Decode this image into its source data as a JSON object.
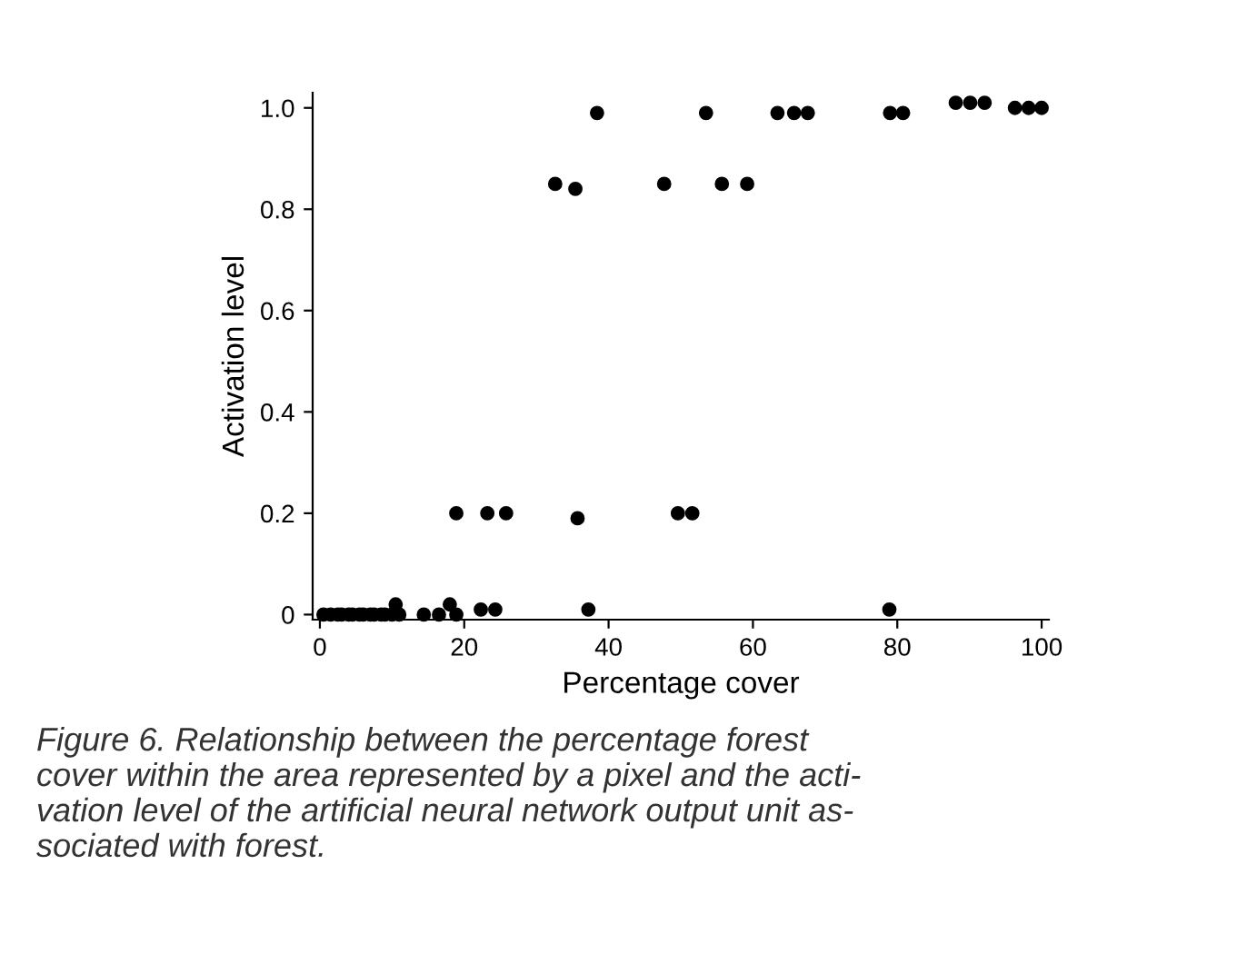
{
  "chart_data": {
    "type": "scatter",
    "xlabel": "Percentage cover",
    "ylabel": "Activation level",
    "annotations": [
      "Figure 6. Relationship between the percentage forest\ncover within the area represented by a pixel and the acti-\nvation level of the artificial neural network output unit as-\nsociated with forest."
    ],
    "x": [
      0.5,
      1.5,
      2.5,
      3,
      4,
      4.5,
      5.5,
      6,
      7,
      7.5,
      8.5,
      9,
      10,
      11,
      10.5,
      14.4,
      16.5,
      18.0,
      18.9,
      22.3,
      24.3,
      37.2,
      78.9,
      18.9,
      23.2,
      25.8,
      35.7,
      49.6,
      51.6,
      32.6,
      35.4,
      47.7,
      55.7,
      59.2,
      38.4,
      53.5,
      63.4,
      65.7,
      67.6,
      79.0,
      80.8,
      88.1,
      90.1,
      92.1,
      96.3,
      98.2,
      100
    ],
    "values": [
      0,
      0,
      0,
      0,
      0,
      0,
      0,
      0,
      0,
      0,
      0,
      0,
      0,
      0,
      0.02,
      0,
      0,
      0.02,
      0,
      0.01,
      0.01,
      0.01,
      0.01,
      0.2,
      0.2,
      0.2,
      0.19,
      0.2,
      0.2,
      0.85,
      0.84,
      0.85,
      0.85,
      0.85,
      0.99,
      0.99,
      0.99,
      0.99,
      0.99,
      0.99,
      0.99,
      1.01,
      1.01,
      1.01,
      1.0,
      1.0,
      1.0
    ],
    "color": "#000000",
    "marker": "circle",
    "xlim": [
      -1,
      101
    ],
    "ylim": [
      -0.01,
      1.03
    ],
    "xticks": [
      0,
      20,
      40,
      60,
      80,
      100
    ],
    "yticks": [
      {
        "value": 0,
        "label": "0"
      },
      0.2,
      0.4,
      0.6,
      0.8,
      {
        "value": 1.0,
        "label": "1.0"
      }
    ],
    "grid": false,
    "legend": false
  }
}
